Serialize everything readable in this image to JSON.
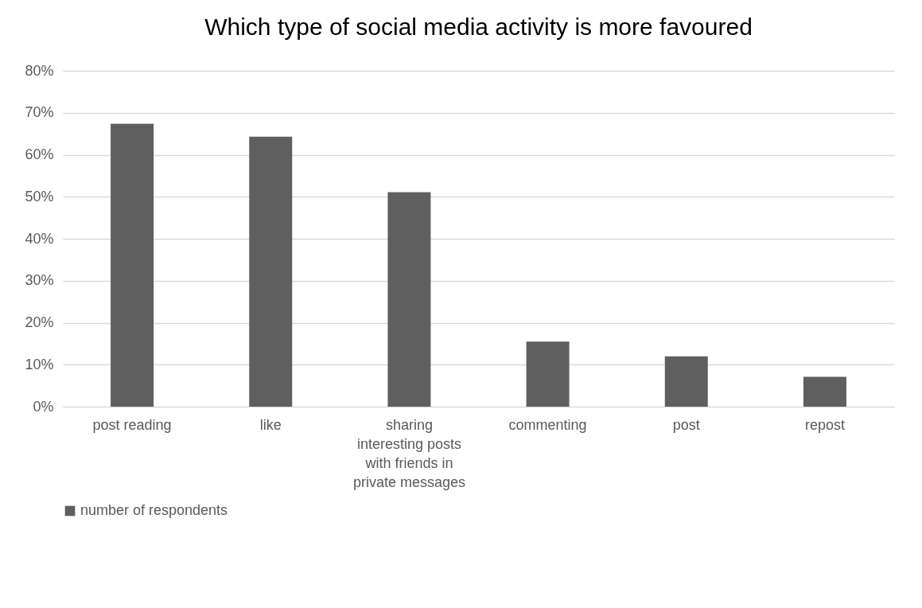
{
  "chart_data": {
    "type": "bar",
    "title": "Which type of social media activity is more favoured",
    "categories": [
      "post reading",
      "like",
      "sharing interesting posts with friends in private messages",
      "commenting",
      "post",
      "repost"
    ],
    "series": [
      {
        "name": "number of respondents",
        "color": "#5f5f5f",
        "values": [
          67.4,
          64.3,
          51.1,
          15.5,
          12.0,
          7.1
        ]
      }
    ],
    "ylim": [
      0,
      80
    ],
    "yticks": [
      {
        "value": 0,
        "label": "0%"
      },
      {
        "value": 10,
        "label": "10%"
      },
      {
        "value": 20,
        "label": "20%"
      },
      {
        "value": 30,
        "label": "30%"
      },
      {
        "value": 40,
        "label": "40%"
      },
      {
        "value": 50,
        "label": "50%"
      },
      {
        "value": 60,
        "label": "60%"
      },
      {
        "value": 70,
        "label": "70%"
      },
      {
        "value": 80,
        "label": "80%"
      }
    ],
    "grid": "y",
    "legend": "bottom"
  }
}
